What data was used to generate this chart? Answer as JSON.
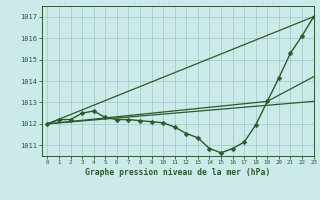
{
  "title": "Graphe pression niveau de la mer (hPa)",
  "background_color": "#cceaea",
  "grid_color": "#aacccc",
  "line_color": "#2d5a27",
  "marker_color": "#2d5a27",
  "xlim": [
    -0.5,
    23
  ],
  "ylim": [
    1010.5,
    1017.5
  ],
  "yticks": [
    1011,
    1012,
    1013,
    1014,
    1015,
    1016,
    1017
  ],
  "xticks": [
    0,
    1,
    2,
    3,
    4,
    5,
    6,
    7,
    8,
    9,
    10,
    11,
    12,
    13,
    14,
    15,
    16,
    17,
    18,
    19,
    20,
    21,
    22,
    23
  ],
  "series": [
    {
      "x": [
        0,
        1,
        2,
        3,
        4,
        5,
        6,
        7,
        8,
        9,
        10,
        11,
        12,
        13,
        14,
        15,
        16,
        17,
        18,
        19,
        20,
        21,
        22,
        23
      ],
      "y": [
        1012.0,
        1012.2,
        1012.2,
        1012.5,
        1012.6,
        1012.3,
        1012.2,
        1012.2,
        1012.15,
        1012.1,
        1012.05,
        1011.85,
        1011.55,
        1011.35,
        1010.85,
        1010.65,
        1010.85,
        1011.15,
        1011.95,
        1013.05,
        1014.15,
        1015.3,
        1016.1,
        1017.0
      ],
      "marker": "D",
      "markersize": 2.5,
      "linewidth": 1.0,
      "has_marker": true
    },
    {
      "x": [
        0,
        23
      ],
      "y": [
        1012.0,
        1017.0
      ],
      "marker": null,
      "markersize": 0,
      "linewidth": 0.9,
      "has_marker": false
    },
    {
      "x": [
        0,
        19,
        23
      ],
      "y": [
        1012.0,
        1013.05,
        1014.2
      ],
      "marker": null,
      "markersize": 0,
      "linewidth": 0.9,
      "has_marker": false
    },
    {
      "x": [
        0,
        23
      ],
      "y": [
        1012.0,
        1013.05
      ],
      "marker": null,
      "markersize": 0,
      "linewidth": 0.9,
      "has_marker": false
    }
  ]
}
